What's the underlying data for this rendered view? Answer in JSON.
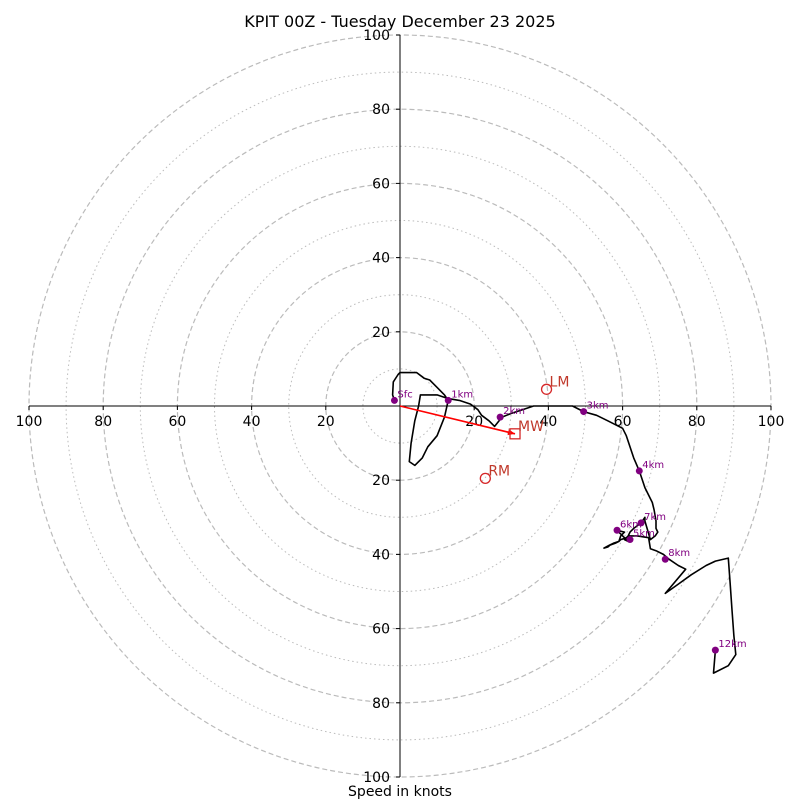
{
  "chart_data": {
    "type": "hodograph",
    "title": "KPIT 00Z - Tuesday December 23 2025",
    "xlabel": "Speed in knots",
    "axis_range": [
      -100,
      100
    ],
    "ring_labels": [
      "100",
      "80",
      "60",
      "40",
      "20",
      "20",
      "40",
      "60",
      "80",
      "100"
    ],
    "x_tick_values": [
      -100,
      -80,
      -60,
      -40,
      -20,
      20,
      40,
      60,
      80,
      100
    ],
    "y_tick_values": [
      100,
      80,
      60,
      40,
      20,
      -20,
      -40,
      -60,
      -80,
      -100
    ],
    "major_rings": [
      20,
      40,
      60,
      80,
      100
    ],
    "minor_rings": [
      10,
      30,
      50,
      70,
      90
    ],
    "colors": {
      "trace": "#000000",
      "height_marker": "#800080",
      "motion": "#d62728",
      "grid": "#bbbbbb",
      "shear_vector": "#ff0000"
    },
    "trace": [
      [
        -1.5,
        1.5
      ],
      [
        -2,
        3
      ],
      [
        -1.8,
        6.5
      ],
      [
        -0.5,
        8.5
      ],
      [
        0,
        9
      ],
      [
        2,
        9
      ],
      [
        3,
        9
      ],
      [
        4.5,
        9
      ],
      [
        6.5,
        7.5
      ],
      [
        8,
        7
      ],
      [
        10,
        5
      ],
      [
        12,
        3
      ],
      [
        13,
        1.5
      ],
      [
        12,
        -3
      ],
      [
        10,
        -8
      ],
      [
        7.5,
        -11
      ],
      [
        6,
        -14
      ],
      [
        4,
        -16
      ],
      [
        2.5,
        -15
      ],
      [
        3,
        -10
      ],
      [
        4,
        -4
      ],
      [
        5,
        0
      ],
      [
        5.5,
        3
      ],
      [
        10,
        3
      ],
      [
        13,
        2
      ],
      [
        16,
        1.5
      ],
      [
        19,
        0.5
      ],
      [
        21,
        -1
      ],
      [
        22,
        -2.5
      ],
      [
        24,
        -4
      ],
      [
        25.5,
        -5.5
      ],
      [
        27.5,
        -3
      ],
      [
        30,
        -2
      ],
      [
        33,
        -1
      ],
      [
        36,
        0
      ],
      [
        40,
        0
      ],
      [
        45,
        0
      ],
      [
        46,
        0
      ],
      [
        46.5,
        0
      ],
      [
        49.5,
        -1.5
      ],
      [
        53,
        -2.5
      ],
      [
        56,
        -4
      ],
      [
        60,
        -6
      ],
      [
        61,
        -8
      ],
      [
        63,
        -14
      ],
      [
        64.5,
        -17.5
      ],
      [
        66,
        -22
      ],
      [
        68,
        -26
      ],
      [
        68.5,
        -28
      ],
      [
        69,
        -31
      ],
      [
        69,
        -33
      ],
      [
        69.5,
        -34
      ],
      [
        68.8,
        -35
      ],
      [
        67.5,
        -36
      ],
      [
        66,
        -31
      ],
      [
        66,
        -30
      ],
      [
        65,
        -31.5
      ],
      [
        63,
        -33
      ],
      [
        62,
        -34
      ],
      [
        61.5,
        -35
      ],
      [
        60.5,
        -36
      ],
      [
        61.5,
        -36.5
      ],
      [
        58.5,
        -33.5
      ],
      [
        60.5,
        -34
      ],
      [
        59.5,
        -35
      ],
      [
        59,
        -36.5
      ],
      [
        57.5,
        -37
      ],
      [
        56.5,
        -37.5
      ],
      [
        55,
        -38.3
      ],
      [
        56,
        -38
      ],
      [
        56.6,
        -37.5
      ],
      [
        58,
        -37
      ],
      [
        59,
        -36.5
      ],
      [
        59.5,
        -36
      ],
      [
        61,
        -35.5
      ],
      [
        62,
        -35
      ],
      [
        64,
        -35
      ],
      [
        67,
        -35.5
      ],
      [
        67.5,
        -38.5
      ],
      [
        69,
        -39
      ],
      [
        71,
        -40
      ],
      [
        72.5,
        -41.3
      ],
      [
        75,
        -43
      ],
      [
        77,
        -44
      ],
      [
        71.5,
        -50.5
      ],
      [
        75,
        -48
      ],
      [
        78.5,
        -45.5
      ],
      [
        82.5,
        -43
      ],
      [
        85,
        -41.8
      ],
      [
        88.5,
        -41
      ],
      [
        89,
        -48
      ],
      [
        89.5,
        -55
      ],
      [
        90,
        -62
      ],
      [
        90.5,
        -67
      ],
      [
        88.5,
        -70
      ],
      [
        84.5,
        -72
      ],
      [
        85,
        -65.8
      ]
    ],
    "height_markers": [
      {
        "label": "Sfc",
        "u": -1.5,
        "v": 1.5
      },
      {
        "label": "1km",
        "u": 13,
        "v": 1.5
      },
      {
        "label": "2km",
        "u": 27,
        "v": -3
      },
      {
        "label": "3km",
        "u": 49.5,
        "v": -1.5
      },
      {
        "label": "4km",
        "u": 64.5,
        "v": -17.5
      },
      {
        "label": "5km",
        "u": 62,
        "v": -36
      },
      {
        "label": "6km",
        "u": 58.5,
        "v": -33.5
      },
      {
        "label": "7km",
        "u": 65,
        "v": -31.5
      },
      {
        "label": "8km",
        "u": 71.5,
        "v": -41.3
      },
      {
        "label": "12km",
        "u": 85,
        "v": -65.8
      }
    ],
    "storm_motions": [
      {
        "label": "LM",
        "u": 39.5,
        "v": 4.5,
        "marker": "circle"
      },
      {
        "label": "RM",
        "u": 23,
        "v": -19.5,
        "marker": "circle"
      },
      {
        "label": "MW",
        "u": 31,
        "v": -7.5,
        "marker": "square"
      }
    ],
    "shear_vector": {
      "from": [
        0,
        0
      ],
      "to": [
        31,
        -7.5
      ]
    }
  }
}
